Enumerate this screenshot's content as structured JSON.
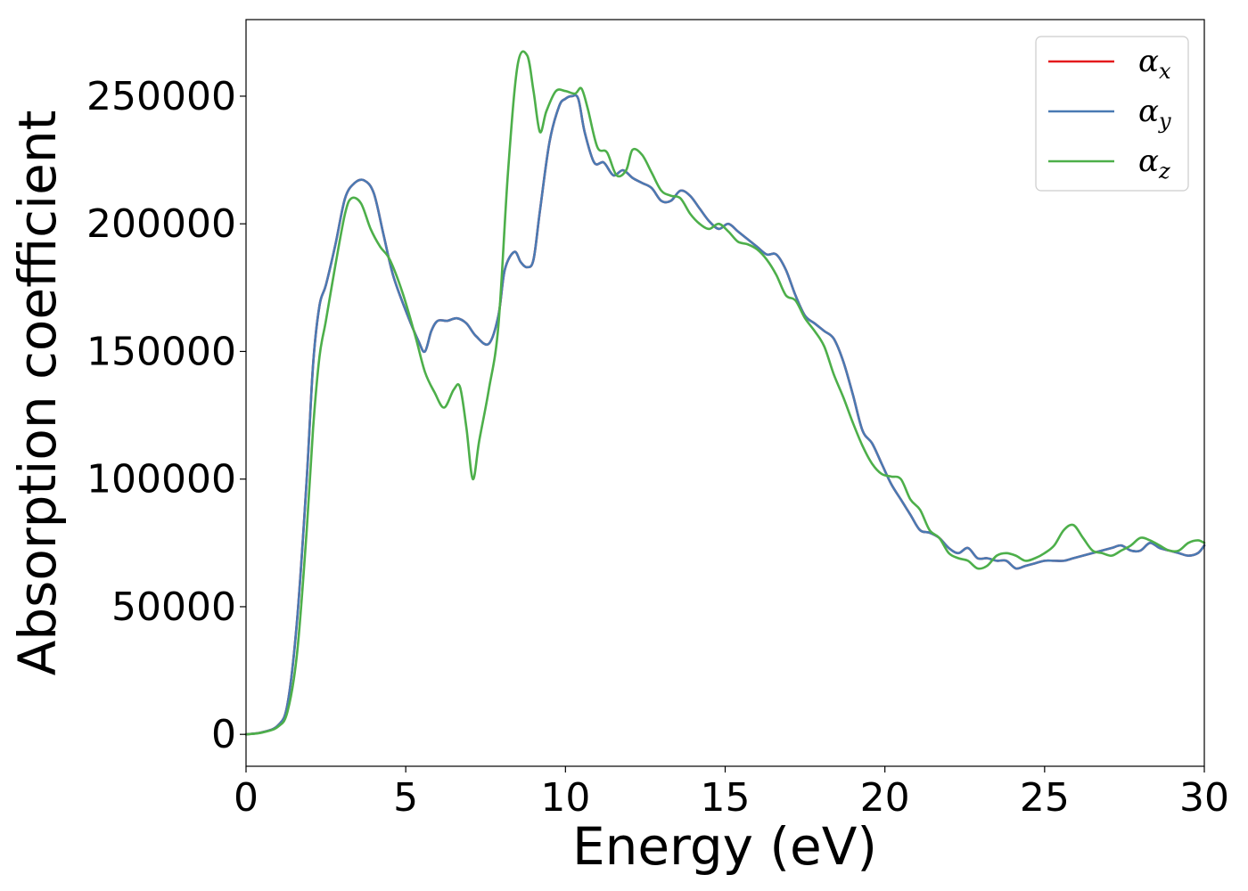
{
  "chart_data": {
    "type": "line",
    "xlabel": "Energy (eV)",
    "ylabel": "Absorption coefficient",
    "xlim": [
      0,
      30
    ],
    "ylim": [
      -12500,
      280000
    ],
    "xticks": [
      0,
      5,
      10,
      15,
      20,
      25,
      30
    ],
    "xtick_labels": [
      "0",
      "5",
      "10",
      "15",
      "20",
      "25",
      "30"
    ],
    "yticks": [
      0,
      50000,
      100000,
      150000,
      200000,
      250000
    ],
    "ytick_labels": [
      "0",
      "50000",
      "100000",
      "150000",
      "200000",
      "250000"
    ],
    "grid": false,
    "legend_position": "top-right",
    "series": [
      {
        "name": "α_x",
        "symbol": "α",
        "subscript": "x",
        "color": "#e41a1c",
        "x": [
          0,
          0.5,
          1.0,
          1.3,
          1.6,
          1.9,
          2.1,
          2.3,
          2.5,
          2.8,
          3.1,
          3.4,
          3.7,
          4.0,
          4.3,
          4.6,
          5.0,
          5.4,
          5.6,
          5.8,
          6.0,
          6.3,
          6.6,
          6.9,
          7.2,
          7.6,
          7.9,
          8.1,
          8.4,
          8.6,
          8.8,
          9.0,
          9.2,
          9.5,
          9.8,
          10.0,
          10.2,
          10.4,
          10.6,
          10.9,
          11.2,
          11.5,
          11.8,
          12.1,
          12.4,
          12.7,
          13.0,
          13.3,
          13.6,
          13.9,
          14.2,
          14.5,
          14.8,
          15.1,
          15.4,
          15.7,
          16.0,
          16.3,
          16.6,
          16.9,
          17.2,
          17.5,
          17.8,
          18.1,
          18.4,
          18.7,
          19.0,
          19.3,
          19.6,
          19.9,
          20.2,
          20.5,
          20.8,
          21.1,
          21.4,
          21.7,
          22.0,
          22.3,
          22.6,
          22.9,
          23.2,
          23.5,
          23.8,
          24.1,
          24.4,
          24.7,
          25.0,
          25.3,
          25.6,
          25.9,
          26.2,
          26.5,
          26.8,
          27.1,
          27.4,
          27.7,
          28.0,
          28.3,
          28.6,
          28.9,
          29.2,
          29.5,
          29.8,
          30
        ],
        "y": [
          0,
          800,
          3500,
          12000,
          45000,
          100000,
          145000,
          168000,
          176000,
          192000,
          210000,
          216000,
          217000,
          212000,
          196000,
          180000,
          166000,
          154000,
          150000,
          158000,
          162000,
          162000,
          163000,
          161000,
          156000,
          153000,
          164000,
          182000,
          189000,
          185000,
          183000,
          186000,
          205000,
          232000,
          246000,
          249000,
          250000,
          249000,
          236000,
          224000,
          224000,
          219000,
          221000,
          218000,
          216000,
          214000,
          209000,
          209000,
          213000,
          211000,
          206000,
          201000,
          198000,
          200000,
          197000,
          194000,
          191000,
          188000,
          188000,
          182000,
          172000,
          164000,
          161000,
          158000,
          155000,
          146000,
          133000,
          119000,
          114000,
          106000,
          98000,
          92000,
          86000,
          80000,
          79000,
          77000,
          73000,
          71000,
          73000,
          69000,
          69000,
          68000,
          68000,
          65000,
          66000,
          67000,
          68000,
          68000,
          68000,
          69000,
          70000,
          71000,
          72000,
          73000,
          74000,
          72000,
          72000,
          75000,
          73000,
          72000,
          71000,
          70000,
          71000,
          74000
        ]
      },
      {
        "name": "α_y",
        "symbol": "α",
        "subscript": "y",
        "color": "#4a7ab3",
        "x": [
          0,
          0.5,
          1.0,
          1.3,
          1.6,
          1.9,
          2.1,
          2.3,
          2.5,
          2.8,
          3.1,
          3.4,
          3.7,
          4.0,
          4.3,
          4.6,
          5.0,
          5.4,
          5.6,
          5.8,
          6.0,
          6.3,
          6.6,
          6.9,
          7.2,
          7.6,
          7.9,
          8.1,
          8.4,
          8.6,
          8.8,
          9.0,
          9.2,
          9.5,
          9.8,
          10.0,
          10.2,
          10.4,
          10.6,
          10.9,
          11.2,
          11.5,
          11.8,
          12.1,
          12.4,
          12.7,
          13.0,
          13.3,
          13.6,
          13.9,
          14.2,
          14.5,
          14.8,
          15.1,
          15.4,
          15.7,
          16.0,
          16.3,
          16.6,
          16.9,
          17.2,
          17.5,
          17.8,
          18.1,
          18.4,
          18.7,
          19.0,
          19.3,
          19.6,
          19.9,
          20.2,
          20.5,
          20.8,
          21.1,
          21.4,
          21.7,
          22.0,
          22.3,
          22.6,
          22.9,
          23.2,
          23.5,
          23.8,
          24.1,
          24.4,
          24.7,
          25.0,
          25.3,
          25.6,
          25.9,
          26.2,
          26.5,
          26.8,
          27.1,
          27.4,
          27.7,
          28.0,
          28.3,
          28.6,
          28.9,
          29.2,
          29.5,
          29.8,
          30
        ],
        "y": [
          0,
          800,
          3500,
          12000,
          45000,
          100000,
          145000,
          168000,
          176000,
          192000,
          210000,
          216000,
          217000,
          212000,
          196000,
          180000,
          166000,
          154000,
          150000,
          158000,
          162000,
          162000,
          163000,
          161000,
          156000,
          153000,
          164000,
          182000,
          189000,
          185000,
          183000,
          186000,
          205000,
          232000,
          246000,
          249000,
          250000,
          249000,
          236000,
          224000,
          224000,
          219000,
          221000,
          218000,
          216000,
          214000,
          209000,
          209000,
          213000,
          211000,
          206000,
          201000,
          198000,
          200000,
          197000,
          194000,
          191000,
          188000,
          188000,
          182000,
          172000,
          164000,
          161000,
          158000,
          155000,
          146000,
          133000,
          119000,
          114000,
          106000,
          98000,
          92000,
          86000,
          80000,
          79000,
          77000,
          73000,
          71000,
          73000,
          69000,
          69000,
          68000,
          68000,
          65000,
          66000,
          67000,
          68000,
          68000,
          68000,
          69000,
          70000,
          71000,
          72000,
          73000,
          74000,
          72000,
          72000,
          75000,
          73000,
          72000,
          71000,
          70000,
          71000,
          74000
        ]
      },
      {
        "name": "α_z",
        "symbol": "α",
        "subscript": "z",
        "color": "#4daf4a",
        "x": [
          0,
          0.5,
          1.0,
          1.3,
          1.6,
          1.9,
          2.1,
          2.3,
          2.5,
          2.8,
          3.1,
          3.3,
          3.6,
          3.9,
          4.2,
          4.5,
          4.9,
          5.3,
          5.6,
          5.9,
          6.2,
          6.5,
          6.7,
          6.9,
          7.1,
          7.3,
          7.6,
          7.9,
          8.2,
          8.5,
          8.8,
          9.0,
          9.2,
          9.4,
          9.7,
          10.0,
          10.3,
          10.5,
          10.7,
          11.0,
          11.3,
          11.6,
          11.9,
          12.1,
          12.4,
          12.7,
          13.0,
          13.3,
          13.6,
          13.9,
          14.2,
          14.5,
          14.8,
          15.1,
          15.4,
          15.7,
          16.0,
          16.3,
          16.6,
          16.9,
          17.2,
          17.5,
          17.8,
          18.1,
          18.4,
          18.7,
          19.0,
          19.3,
          19.6,
          19.9,
          20.2,
          20.5,
          20.8,
          21.1,
          21.4,
          21.7,
          22.0,
          22.3,
          22.6,
          22.9,
          23.2,
          23.5,
          23.8,
          24.1,
          24.4,
          24.7,
          25.0,
          25.3,
          25.6,
          25.9,
          26.2,
          26.5,
          26.8,
          27.1,
          27.4,
          27.7,
          28.0,
          28.3,
          28.6,
          28.9,
          29.2,
          29.5,
          29.8,
          30
        ],
        "y": [
          0,
          700,
          3000,
          9000,
          32000,
          80000,
          120000,
          148000,
          162000,
          184000,
          204000,
          210000,
          208000,
          198000,
          191000,
          186000,
          173000,
          156000,
          142000,
          134000,
          128000,
          135000,
          136000,
          120000,
          100000,
          115000,
          135000,
          160000,
          220000,
          262000,
          266000,
          252000,
          236000,
          244000,
          252000,
          252000,
          251000,
          253000,
          245000,
          230000,
          228000,
          219000,
          221000,
          229000,
          227000,
          220000,
          213000,
          211000,
          210000,
          204000,
          200000,
          198000,
          200000,
          197000,
          193000,
          192000,
          190000,
          186000,
          180000,
          172000,
          170000,
          163000,
          158000,
          152000,
          141000,
          132000,
          122000,
          113000,
          106000,
          102000,
          101000,
          100000,
          92000,
          88000,
          80000,
          77000,
          71000,
          69000,
          68000,
          65000,
          66000,
          70000,
          71000,
          70000,
          68000,
          69000,
          71000,
          74000,
          80000,
          82000,
          77000,
          72000,
          71000,
          70000,
          72000,
          74000,
          77000,
          76000,
          74000,
          72000,
          72000,
          75000,
          76000,
          75000
        ]
      }
    ]
  }
}
